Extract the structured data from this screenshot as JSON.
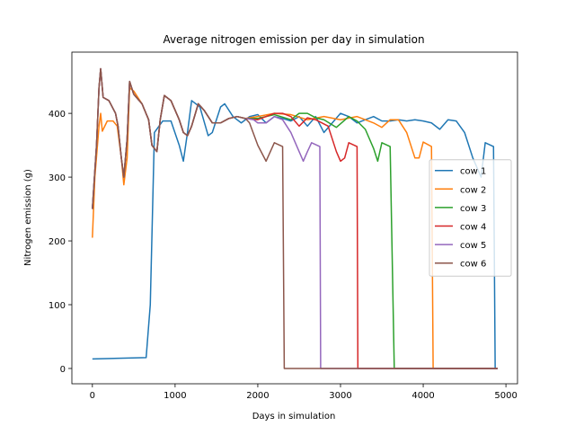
{
  "chart_data": {
    "type": "line",
    "title": "Average nitrogen emission per day in simulation",
    "x_label": "Days in simulation",
    "y_label": "Nitrogen emission (g)",
    "xlim": [
      -248,
      5140
    ],
    "ylim": [
      -24,
      496
    ],
    "xticks": [
      0,
      1000,
      2000,
      3000,
      4000,
      5000
    ],
    "yticks": [
      0,
      100,
      200,
      300,
      400
    ],
    "legend": "center right",
    "series": [
      {
        "name": "cow 1",
        "color": "#1f77b4",
        "x": [
          0,
          650,
          700,
          750,
          850,
          950,
          1050,
          1100,
          1150,
          1200,
          1300,
          1400,
          1450,
          1550,
          1600,
          1700,
          1800,
          1900,
          2000,
          2100,
          2200,
          2300,
          2400,
          2500,
          2600,
          2700,
          2800,
          2900,
          3000,
          3100,
          3200,
          3300,
          3400,
          3500,
          3600,
          3700,
          3800,
          3900,
          4000,
          4100,
          4200,
          4300,
          4400,
          4500,
          4600,
          4650,
          4700,
          4750,
          4850,
          4870,
          4900
        ],
        "values": [
          15,
          17,
          100,
          370,
          388,
          388,
          350,
          325,
          370,
          420,
          410,
          365,
          370,
          410,
          415,
          395,
          385,
          395,
          398,
          385,
          395,
          392,
          388,
          395,
          380,
          395,
          370,
          385,
          400,
          395,
          385,
          390,
          395,
          388,
          388,
          390,
          388,
          390,
          388,
          385,
          375,
          390,
          388,
          370,
          330,
          315,
          300,
          354,
          348,
          0,
          0
        ]
      },
      {
        "name": "cow 2",
        "color": "#ff7f0e",
        "x": [
          0,
          30,
          80,
          100,
          120,
          180,
          250,
          300,
          350,
          380,
          420,
          450,
          500,
          600,
          680,
          720,
          780,
          820,
          870,
          950,
          1050,
          1100,
          1150,
          1200,
          1280,
          1350,
          1450,
          1550,
          1650,
          1750,
          1850,
          2000,
          2200,
          2400,
          2600,
          2800,
          3000,
          3200,
          3400,
          3500,
          3600,
          3700,
          3800,
          3900,
          3950,
          4000,
          4100,
          4120,
          4900
        ],
        "values": [
          205,
          300,
          380,
          400,
          372,
          388,
          388,
          380,
          330,
          288,
          330,
          440,
          435,
          415,
          390,
          350,
          340,
          390,
          428,
          420,
          390,
          370,
          365,
          380,
          415,
          405,
          385,
          385,
          392,
          395,
          392,
          395,
          400,
          398,
          390,
          395,
          390,
          395,
          385,
          378,
          390,
          390,
          370,
          330,
          330,
          355,
          348,
          0,
          0
        ]
      },
      {
        "name": "cow 3",
        "color": "#2ca02c",
        "x": [
          0,
          50,
          80,
          100,
          130,
          200,
          280,
          310,
          350,
          380,
          420,
          450,
          500,
          600,
          680,
          720,
          780,
          820,
          870,
          950,
          1050,
          1100,
          1150,
          1200,
          1280,
          1350,
          1450,
          1550,
          1650,
          1750,
          1850,
          2000,
          2200,
          2400,
          2500,
          2600,
          2700,
          2800,
          2950,
          3100,
          3200,
          3300,
          3400,
          3450,
          3500,
          3600,
          3650,
          4900
        ],
        "values": [
          250,
          350,
          440,
          470,
          425,
          420,
          400,
          380,
          330,
          300,
          360,
          450,
          430,
          415,
          390,
          350,
          340,
          390,
          428,
          420,
          390,
          370,
          365,
          380,
          415,
          405,
          385,
          385,
          392,
          395,
          392,
          392,
          398,
          390,
          400,
          400,
          393,
          390,
          378,
          395,
          388,
          375,
          345,
          325,
          354,
          348,
          0,
          0
        ]
      },
      {
        "name": "cow 4",
        "color": "#d62728",
        "x": [
          0,
          50,
          80,
          100,
          130,
          200,
          280,
          310,
          350,
          380,
          420,
          450,
          500,
          600,
          680,
          720,
          780,
          820,
          870,
          950,
          1050,
          1100,
          1150,
          1200,
          1280,
          1350,
          1450,
          1550,
          1650,
          1750,
          1850,
          2000,
          2200,
          2300,
          2400,
          2500,
          2600,
          2700,
          2850,
          2950,
          3000,
          3050,
          3100,
          3200,
          3210,
          4900
        ],
        "values": [
          250,
          350,
          440,
          470,
          425,
          420,
          400,
          380,
          330,
          300,
          360,
          450,
          430,
          415,
          390,
          350,
          340,
          390,
          428,
          420,
          390,
          370,
          365,
          380,
          415,
          405,
          385,
          385,
          392,
          395,
          392,
          390,
          400,
          400,
          395,
          380,
          393,
          390,
          380,
          340,
          325,
          330,
          354,
          348,
          0,
          0
        ]
      },
      {
        "name": "cow 5",
        "color": "#9467bd",
        "x": [
          0,
          50,
          80,
          100,
          130,
          200,
          280,
          310,
          350,
          380,
          420,
          450,
          500,
          600,
          680,
          720,
          780,
          820,
          870,
          950,
          1050,
          1100,
          1150,
          1200,
          1280,
          1350,
          1450,
          1550,
          1650,
          1750,
          1850,
          1950,
          2000,
          2100,
          2200,
          2300,
          2400,
          2500,
          2550,
          2600,
          2650,
          2750,
          2760,
          4900
        ],
        "values": [
          250,
          350,
          440,
          470,
          425,
          420,
          400,
          380,
          330,
          300,
          360,
          450,
          430,
          415,
          390,
          350,
          340,
          390,
          428,
          420,
          390,
          370,
          365,
          380,
          415,
          405,
          385,
          385,
          392,
          395,
          392,
          390,
          385,
          385,
          395,
          390,
          370,
          340,
          325,
          340,
          354,
          348,
          0,
          0
        ]
      },
      {
        "name": "cow 6",
        "color": "#8c564b",
        "x": [
          0,
          50,
          80,
          100,
          130,
          200,
          280,
          310,
          350,
          380,
          420,
          450,
          500,
          600,
          680,
          720,
          780,
          820,
          870,
          950,
          1050,
          1100,
          1150,
          1200,
          1280,
          1350,
          1450,
          1550,
          1650,
          1750,
          1850,
          1900,
          2000,
          2100,
          2200,
          2300,
          2320,
          4900
        ],
        "values": [
          250,
          350,
          440,
          470,
          425,
          420,
          400,
          380,
          330,
          300,
          360,
          450,
          430,
          415,
          390,
          350,
          340,
          390,
          428,
          420,
          390,
          370,
          365,
          380,
          415,
          405,
          385,
          385,
          392,
          395,
          392,
          385,
          350,
          325,
          354,
          348,
          0,
          0
        ]
      }
    ]
  }
}
